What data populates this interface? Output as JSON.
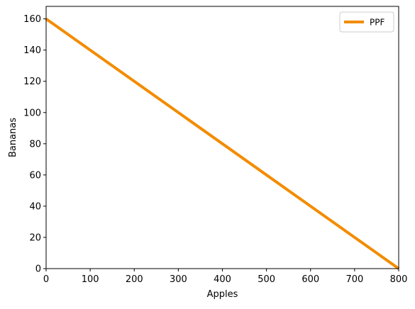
{
  "chart_data": {
    "type": "line",
    "xlabel": "Apples",
    "ylabel": "Bananas",
    "xlim": [
      0,
      800
    ],
    "ylim": [
      0,
      168
    ],
    "x_ticks": [
      0,
      100,
      200,
      300,
      400,
      500,
      600,
      700,
      800
    ],
    "y_ticks": [
      0,
      20,
      40,
      60,
      80,
      100,
      120,
      140,
      160
    ],
    "grid": false,
    "legend": {
      "position": "top-right"
    },
    "series": [
      {
        "name": "PPF",
        "color": "#f28c00",
        "x": [
          0,
          800
        ],
        "y": [
          160,
          0
        ]
      }
    ]
  }
}
